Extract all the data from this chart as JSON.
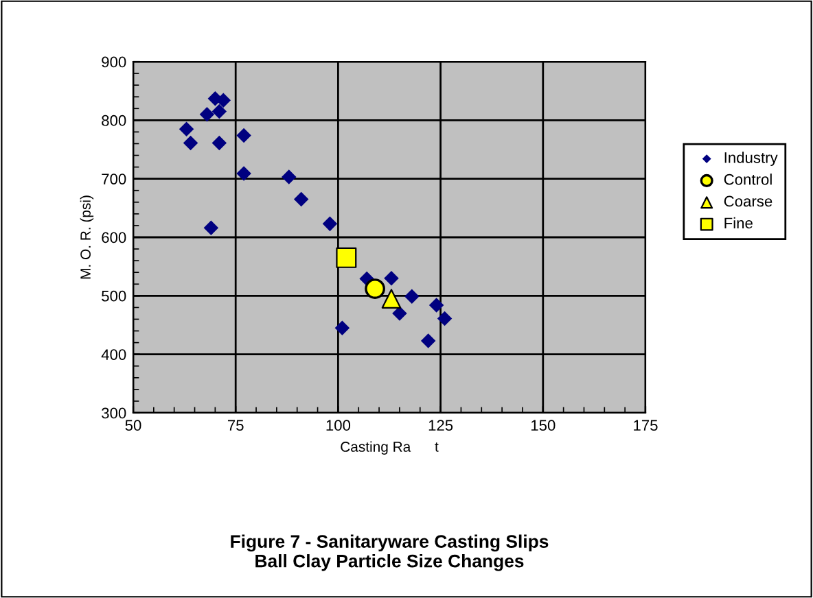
{
  "chart_data": {
    "type": "scatter",
    "title": "Figure 7 - Sanitaryware Casting Slips\nBall Clay Particle Size Changes",
    "xlabel": "Casting Ra      t",
    "ylabel": "M. O. R. (psi)",
    "xlim": [
      50,
      175
    ],
    "xticks": [
      50,
      75,
      100,
      125,
      150,
      175
    ],
    "ylim": [
      300,
      900
    ],
    "yticks": [
      300,
      400,
      500,
      600,
      700,
      800,
      900
    ],
    "grid": true,
    "legend": "right",
    "series": [
      {
        "name": "Industry",
        "color": "#000080",
        "marker": "diamond",
        "x": [
          63,
          64,
          68,
          70,
          71,
          72,
          71,
          69,
          77,
          77,
          88,
          91,
          98,
          101,
          107,
          113,
          115,
          118,
          122,
          124,
          126
        ],
        "values": [
          785,
          761,
          810,
          837,
          815,
          834,
          761,
          616,
          774,
          709,
          703,
          665,
          623,
          445,
          529,
          530,
          470,
          499,
          423,
          484,
          461
        ]
      },
      {
        "name": "Control",
        "color": "#ffff00",
        "marker": "circle",
        "x": [
          109
        ],
        "values": [
          512
        ]
      },
      {
        "name": "Coarse",
        "color": "#ffff00",
        "marker": "triangle",
        "x": [
          113
        ],
        "values": [
          495
        ]
      },
      {
        "name": "Fine",
        "color": "#ffff00",
        "marker": "square",
        "x": [
          102
        ],
        "values": [
          565
        ]
      }
    ]
  }
}
